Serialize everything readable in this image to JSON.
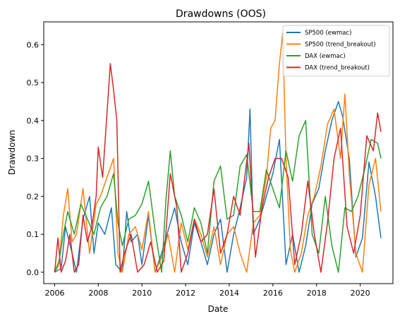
{
  "chart_data": {
    "type": "line",
    "title": "Drawdowns (OOS)",
    "xlabel": "Date",
    "ylabel": "Drawdown",
    "xlim": [
      2005.5,
      2021.5
    ],
    "ylim": [
      -0.03,
      0.66
    ],
    "xticks": [
      2006,
      2008,
      2010,
      2012,
      2014,
      2016,
      2018,
      2020
    ],
    "xtick_labels": [
      "2006",
      "2008",
      "2010",
      "2012",
      "2014",
      "2016",
      "2018",
      "2020"
    ],
    "yticks": [
      0.0,
      0.1,
      0.2,
      0.3,
      0.4,
      0.5,
      0.6
    ],
    "ytick_labels": [
      "0.0",
      "0.1",
      "0.2",
      "0.3",
      "0.4",
      "0.5",
      "0.6"
    ],
    "grid": false,
    "legend": "top-right",
    "series": [
      {
        "name": "SP500 (ewmac)",
        "color": "#1f77b4",
        "x": [
          2006.0,
          2006.3,
          2006.5,
          2006.8,
          2007.0,
          2007.3,
          2007.6,
          2007.8,
          2008.0,
          2008.3,
          2008.6,
          2008.8,
          2009.1,
          2009.3,
          2009.5,
          2009.8,
          2010.0,
          2010.3,
          2010.6,
          2010.9,
          2011.2,
          2011.5,
          2011.8,
          2012.1,
          2012.4,
          2012.7,
          2013.0,
          2013.3,
          2013.6,
          2013.9,
          2014.2,
          2014.5,
          2014.8,
          2014.95,
          2015.1,
          2015.4,
          2015.7,
          2016.0,
          2016.3,
          2016.6,
          2016.9,
          2017.2,
          2017.5,
          2017.8,
          2018.1,
          2018.4,
          2018.7,
          2019.0,
          2019.2,
          2019.5,
          2019.8,
          2020.1,
          2020.4,
          2020.7,
          2020.95
        ],
        "y": [
          0.0,
          0.01,
          0.12,
          0.05,
          0.0,
          0.14,
          0.2,
          0.05,
          0.13,
          0.1,
          0.17,
          0.02,
          0.0,
          0.16,
          0.08,
          0.1,
          0.02,
          0.15,
          0.0,
          0.05,
          0.11,
          0.17,
          0.08,
          0.02,
          0.13,
          0.08,
          0.02,
          0.1,
          0.14,
          0.0,
          0.1,
          0.17,
          0.25,
          0.43,
          0.1,
          0.14,
          0.2,
          0.26,
          0.35,
          0.02,
          0.1,
          0.0,
          0.07,
          0.18,
          0.22,
          0.32,
          0.4,
          0.45,
          0.41,
          0.3,
          0.04,
          0.09,
          0.29,
          0.2,
          0.09
        ]
      },
      {
        "name": "SP500 (trend_breakout)",
        "color": "#ff7f0e",
        "x": [
          2006.0,
          2006.2,
          2006.4,
          2006.6,
          2006.8,
          2007.0,
          2007.3,
          2007.6,
          2007.9,
          2008.1,
          2008.4,
          2008.7,
          2008.9,
          2009.1,
          2009.4,
          2009.7,
          2010.0,
          2010.3,
          2010.6,
          2010.9,
          2011.2,
          2011.5,
          2011.8,
          2012.1,
          2012.4,
          2012.7,
          2013.0,
          2013.3,
          2013.6,
          2013.9,
          2014.2,
          2014.5,
          2014.8,
          2015.1,
          2015.4,
          2015.7,
          2015.9,
          2016.1,
          2016.3,
          2016.45,
          2016.6,
          2016.8,
          2017.0,
          2017.3,
          2017.6,
          2017.9,
          2018.2,
          2018.5,
          2018.8,
          2019.1,
          2019.3,
          2019.5,
          2019.8,
          2020.1,
          2020.4,
          2020.7,
          2020.95
        ],
        "y": [
          0.0,
          0.02,
          0.15,
          0.22,
          0.08,
          0.1,
          0.22,
          0.05,
          0.18,
          0.2,
          0.25,
          0.3,
          0.05,
          0.0,
          0.1,
          0.12,
          0.06,
          0.16,
          0.0,
          0.04,
          0.1,
          0.0,
          0.13,
          0.06,
          0.14,
          0.1,
          0.04,
          0.12,
          0.02,
          0.1,
          0.12,
          0.05,
          0.0,
          0.13,
          0.15,
          0.25,
          0.38,
          0.4,
          0.55,
          0.63,
          0.3,
          0.06,
          0.0,
          0.05,
          0.15,
          0.2,
          0.28,
          0.39,
          0.43,
          0.3,
          0.47,
          0.26,
          0.05,
          0.0,
          0.23,
          0.3,
          0.16
        ]
      },
      {
        "name": "DAX (ewmac)",
        "color": "#2ca02c",
        "x": [
          2006.0,
          2006.2,
          2006.4,
          2006.6,
          2006.9,
          2007.2,
          2007.5,
          2007.8,
          2008.1,
          2008.4,
          2008.7,
          2008.9,
          2009.1,
          2009.4,
          2009.7,
          2010.0,
          2010.3,
          2010.6,
          2010.9,
          2011.1,
          2011.3,
          2011.5,
          2011.8,
          2012.1,
          2012.4,
          2012.7,
          2013.0,
          2013.3,
          2013.6,
          2013.9,
          2014.2,
          2014.5,
          2014.8,
          2015.1,
          2015.4,
          2015.7,
          2016.0,
          2016.3,
          2016.6,
          2016.9,
          2017.2,
          2017.5,
          2017.8,
          2018.1,
          2018.4,
          2018.7,
          2019.0,
          2019.3,
          2019.6,
          2019.9,
          2020.2,
          2020.5,
          2020.8,
          2020.95
        ],
        "y": [
          0.0,
          0.03,
          0.1,
          0.16,
          0.1,
          0.18,
          0.14,
          0.1,
          0.17,
          0.2,
          0.26,
          0.13,
          0.07,
          0.14,
          0.15,
          0.18,
          0.24,
          0.11,
          0.0,
          0.19,
          0.32,
          0.2,
          0.15,
          0.08,
          0.17,
          0.13,
          0.05,
          0.24,
          0.28,
          0.14,
          0.15,
          0.28,
          0.31,
          0.16,
          0.16,
          0.27,
          0.22,
          0.17,
          0.32,
          0.24,
          0.36,
          0.4,
          0.1,
          0.05,
          0.2,
          0.07,
          0.0,
          0.17,
          0.16,
          0.2,
          0.27,
          0.35,
          0.34,
          0.3
        ]
      },
      {
        "name": "DAX (trend_breakout)",
        "color": "#d62728",
        "x": [
          2006.0,
          2006.15,
          2006.3,
          2006.5,
          2006.7,
          2006.9,
          2007.1,
          2007.3,
          2007.5,
          2007.7,
          2007.9,
          2008.0,
          2008.2,
          2008.4,
          2008.55,
          2008.7,
          2008.85,
          2009.0,
          2009.2,
          2009.5,
          2009.8,
          2010.1,
          2010.4,
          2010.7,
          2011.0,
          2011.3,
          2011.6,
          2011.8,
          2012.1,
          2012.4,
          2012.7,
          2013.0,
          2013.3,
          2013.6,
          2013.9,
          2014.2,
          2014.5,
          2014.9,
          2015.2,
          2015.5,
          2015.8,
          2016.1,
          2016.4,
          2016.7,
          2017.0,
          2017.3,
          2017.6,
          2017.9,
          2018.2,
          2018.5,
          2018.8,
          2019.1,
          2019.4,
          2019.7,
          2020.0,
          2020.3,
          2020.6,
          2020.8,
          2020.95
        ],
        "y": [
          0.0,
          0.09,
          0.0,
          0.03,
          0.1,
          0.0,
          0.02,
          0.15,
          0.08,
          0.12,
          0.2,
          0.33,
          0.25,
          0.42,
          0.55,
          0.48,
          0.4,
          0.0,
          0.05,
          0.1,
          0.0,
          0.02,
          0.08,
          0.0,
          0.03,
          0.26,
          0.17,
          0.0,
          0.05,
          0.14,
          0.08,
          0.1,
          0.22,
          0.05,
          0.1,
          0.2,
          0.15,
          0.34,
          0.04,
          0.17,
          0.25,
          0.3,
          0.3,
          0.25,
          0.02,
          0.1,
          0.24,
          0.1,
          0.0,
          0.13,
          0.3,
          0.38,
          0.12,
          0.05,
          0.15,
          0.36,
          0.32,
          0.42,
          0.37
        ]
      }
    ]
  }
}
